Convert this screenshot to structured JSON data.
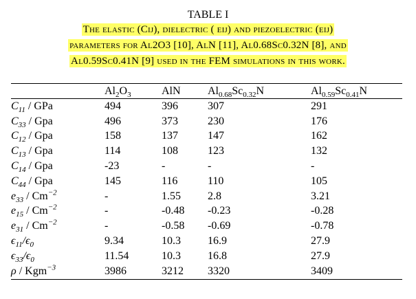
{
  "table_label": "TABLE I",
  "caption_lines": [
    "The elastic (Cij), dielectric ( ϵij) and piezoelectric (eij)",
    "parameters for Al2O3 [10], AlN [11], Al0.68Sc0.32N [8], and",
    "Al0.59Sc0.41N [9] used in the FEM simulations in this work."
  ],
  "highlight_color": "#ffff66",
  "columns": [
    "",
    "Al2O3",
    "AlN",
    "Al0.68Sc0.32N",
    "Al0.59Sc0.41N"
  ],
  "rows": [
    {
      "param": "C11 / GPa",
      "values": [
        "494",
        "396",
        "307",
        "291"
      ]
    },
    {
      "param": "C33 / Gpa",
      "values": [
        "496",
        "373",
        "230",
        "176"
      ]
    },
    {
      "param": "C12 / Gpa",
      "values": [
        "158",
        "137",
        "147",
        "162"
      ]
    },
    {
      "param": "C13 / Gpa",
      "values": [
        "114",
        "108",
        "123",
        "132"
      ]
    },
    {
      "param": "C14 / Gpa",
      "values": [
        "-23",
        "-",
        "-",
        "-"
      ]
    },
    {
      "param": "C44 / Gpa",
      "values": [
        "145",
        "116",
        "110",
        "105"
      ]
    },
    {
      "param": "e33 / Cm−2",
      "values": [
        "-",
        "1.55",
        "2.8",
        "3.21"
      ]
    },
    {
      "param": "e15 / Cm−2",
      "values": [
        "-",
        "-0.48",
        "-0.23",
        "-0.28"
      ]
    },
    {
      "param": "e31 / Cm−2",
      "values": [
        "-",
        "-0.58",
        "-0.69",
        "-0.78"
      ]
    },
    {
      "param": "ϵ11/ϵ0",
      "values": [
        "9.34",
        "10.3",
        "16.9",
        "27.9"
      ]
    },
    {
      "param": "ϵ33/ϵ0",
      "values": [
        "11.54",
        "10.3",
        "16.8",
        "27.9"
      ]
    },
    {
      "param": "ρ / Kgm−3",
      "values": [
        "3986",
        "3212",
        "3320",
        "3409"
      ]
    }
  ]
}
